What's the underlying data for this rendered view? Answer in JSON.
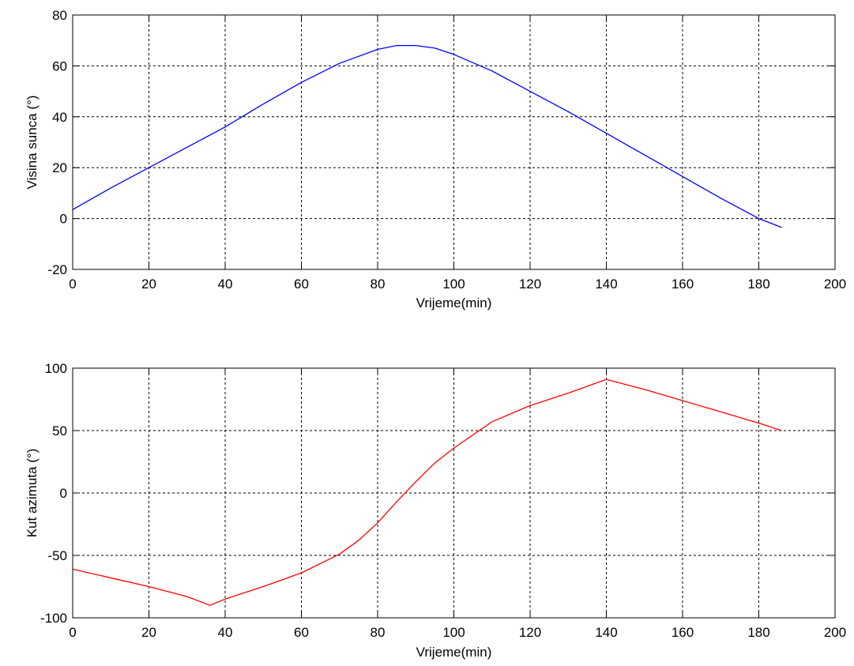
{
  "chart_data": [
    {
      "type": "line",
      "xlabel": "Vrijeme(min)",
      "ylabel": "Visina sunca (°)",
      "xlim": [
        0,
        200
      ],
      "ylim": [
        -20,
        80
      ],
      "xticks": [
        0,
        20,
        40,
        60,
        80,
        100,
        120,
        140,
        160,
        180,
        200
      ],
      "yticks": [
        -20,
        0,
        20,
        40,
        60,
        80
      ],
      "grid": true,
      "series": [
        {
          "color": "#0000ff",
          "x": [
            0,
            10,
            20,
            30,
            40,
            50,
            60,
            70,
            80,
            85,
            90,
            95,
            100,
            110,
            120,
            130,
            140,
            150,
            160,
            170,
            180,
            186
          ],
          "y": [
            3.5,
            12,
            20,
            28,
            36,
            45,
            53.5,
            61,
            66.5,
            68,
            68,
            67,
            64.5,
            58,
            50,
            42,
            33.5,
            25,
            16.5,
            8,
            0,
            -3.5
          ]
        }
      ]
    },
    {
      "type": "line",
      "xlabel": "Vrijeme(min)",
      "ylabel": "Kut azimuta (°)",
      "xlim": [
        0,
        200
      ],
      "ylim": [
        -100,
        100
      ],
      "xticks": [
        0,
        20,
        40,
        60,
        80,
        100,
        120,
        140,
        160,
        180,
        200
      ],
      "yticks": [
        -100,
        -50,
        0,
        50,
        100
      ],
      "grid": true,
      "series": [
        {
          "color": "#ff0000",
          "x": [
            0,
            10,
            20,
            30,
            36,
            40,
            50,
            60,
            70,
            75,
            80,
            85,
            90,
            95,
            100,
            110,
            120,
            130,
            140,
            150,
            160,
            170,
            180,
            186
          ],
          "y": [
            -61,
            -68,
            -75,
            -83,
            -90,
            -85,
            -75,
            -64,
            -49,
            -38,
            -24,
            -7,
            9,
            24,
            36,
            57,
            70,
            80,
            91,
            83,
            74,
            65,
            56,
            50
          ]
        }
      ]
    }
  ]
}
